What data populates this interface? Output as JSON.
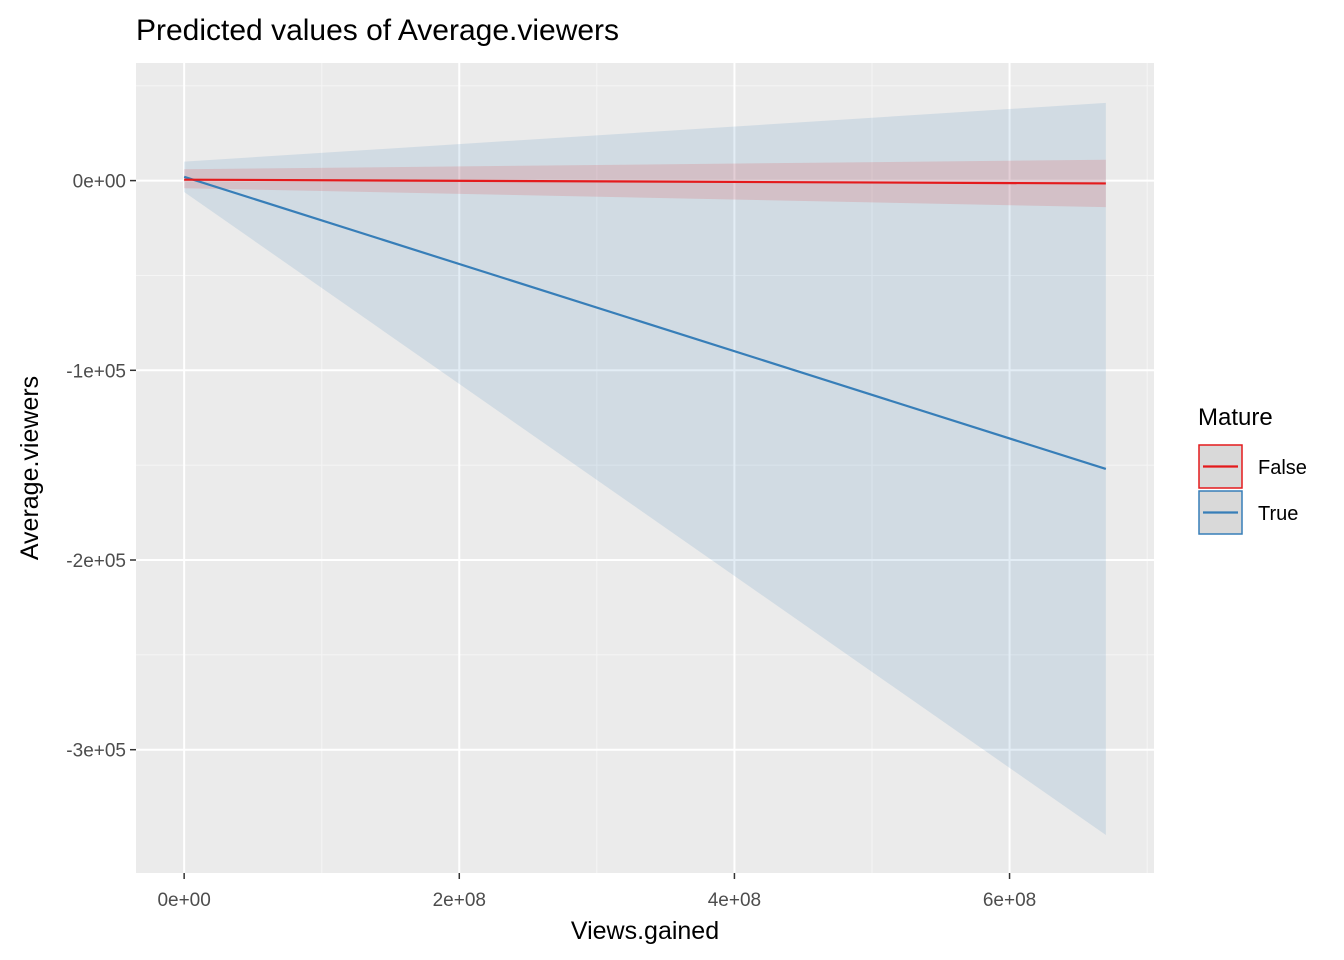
{
  "chart_data": {
    "type": "line",
    "title": "Predicted values of Average.viewers",
    "xlabel": "Views.gained",
    "ylabel": "Average.viewers",
    "xlim": [
      -35000000,
      705000000
    ],
    "ylim": [
      -365000,
      62000
    ],
    "x_ticks": [
      0,
      200000000,
      400000000,
      600000000
    ],
    "x_tick_labels": [
      "0e+00",
      "2e+08",
      "4e+08",
      "6e+08"
    ],
    "y_ticks": [
      0,
      -100000,
      -200000,
      -300000
    ],
    "y_tick_labels": [
      "0e+00",
      "-1e+05",
      "-2e+05",
      "-3e+05"
    ],
    "grid": true,
    "legend": {
      "title": "Mature",
      "position": "right"
    },
    "series": [
      {
        "name": "False",
        "color": "#e41a1c",
        "x": [
          0,
          670000000
        ],
        "y": [
          500,
          -1500
        ],
        "ci_low": [
          -4000,
          -14000
        ],
        "ci_high": [
          6000,
          11000
        ]
      },
      {
        "name": "True",
        "color": "#377eb8",
        "x": [
          0,
          670000000
        ],
        "y": [
          2000,
          -152000
        ],
        "ci_low": [
          -6000,
          -345000
        ],
        "ci_high": [
          10000,
          41000
        ]
      }
    ]
  }
}
